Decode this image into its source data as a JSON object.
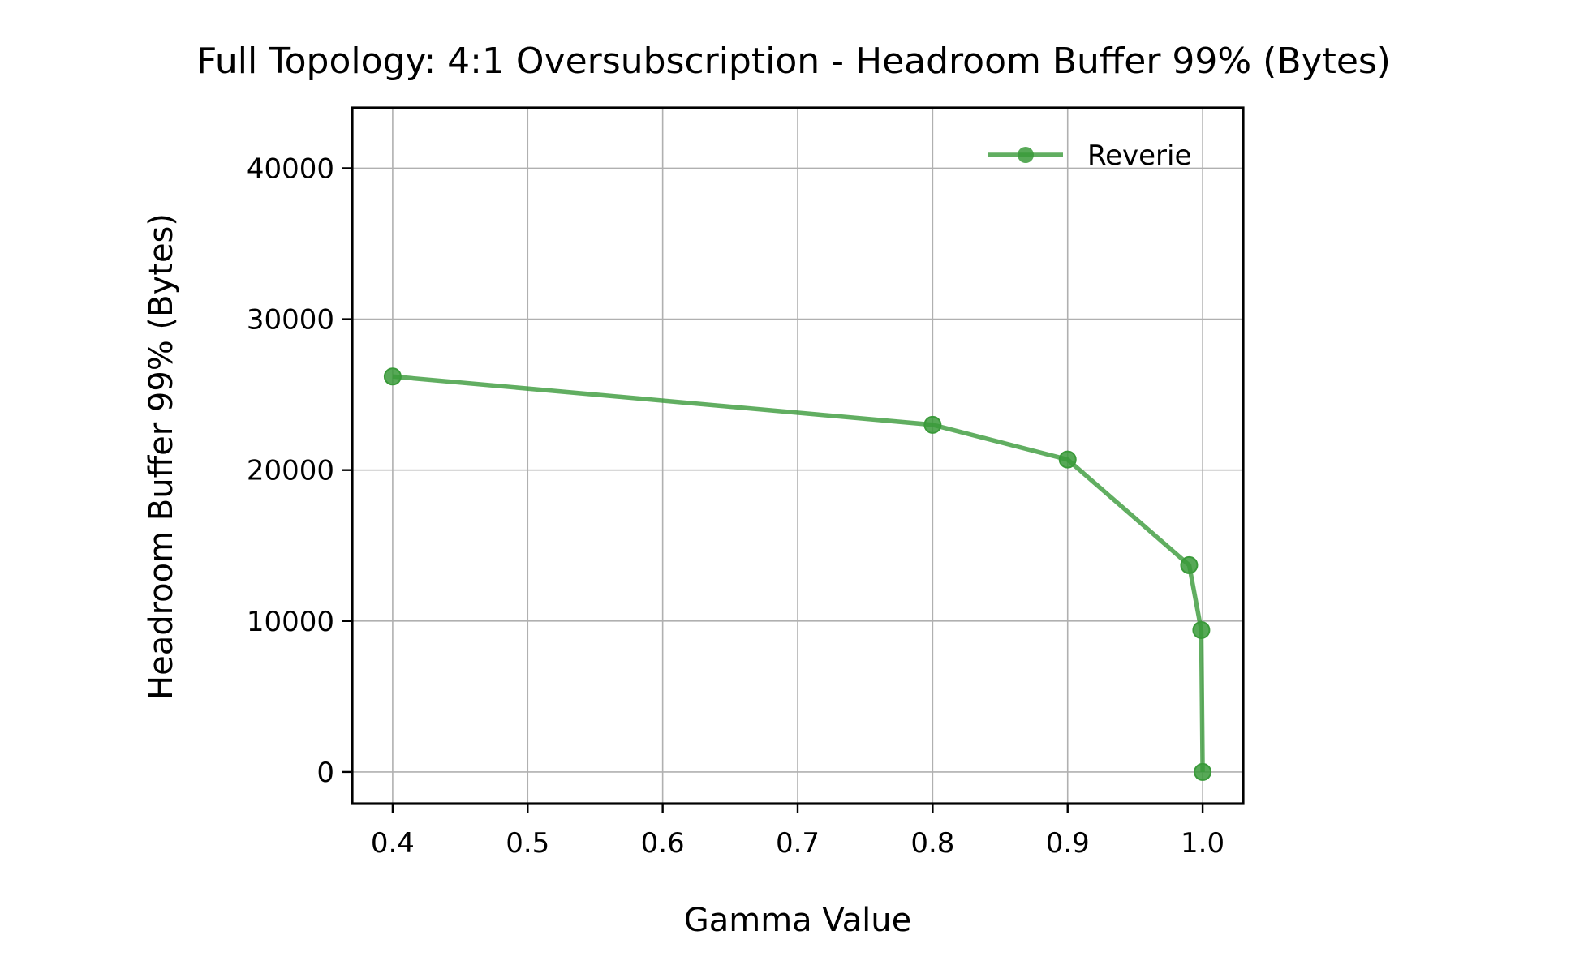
{
  "chart_data": {
    "type": "line",
    "title": "Full Topology: 4:1 Oversubscription - Headroom Buffer 99% (Bytes)",
    "xlabel": "Gamma Value",
    "ylabel": "Headroom Buffer 99% (Bytes)",
    "xlim": [
      0.37,
      1.03
    ],
    "ylim": [
      -2100,
      44000
    ],
    "x_ticks": [
      0.4,
      0.5,
      0.6,
      0.7,
      0.8,
      0.9,
      1.0
    ],
    "x_tick_labels": [
      "0.4",
      "0.5",
      "0.6",
      "0.7",
      "0.8",
      "0.9",
      "1.0"
    ],
    "y_ticks": [
      0,
      10000,
      20000,
      30000,
      40000
    ],
    "y_tick_labels": [
      "0",
      "10000",
      "20000",
      "30000",
      "40000"
    ],
    "grid": true,
    "legend_position": "top-right",
    "series": [
      {
        "name": "Reverie",
        "color": "#3a9a3a",
        "marker": "circle",
        "points": [
          {
            "x": 0.4,
            "y": 26200
          },
          {
            "x": 0.8,
            "y": 23000
          },
          {
            "x": 0.9,
            "y": 20700
          },
          {
            "x": 0.99,
            "y": 13700
          },
          {
            "x": 0.999,
            "y": 9400
          },
          {
            "x": 1.0,
            "y": 0
          }
        ]
      }
    ]
  }
}
